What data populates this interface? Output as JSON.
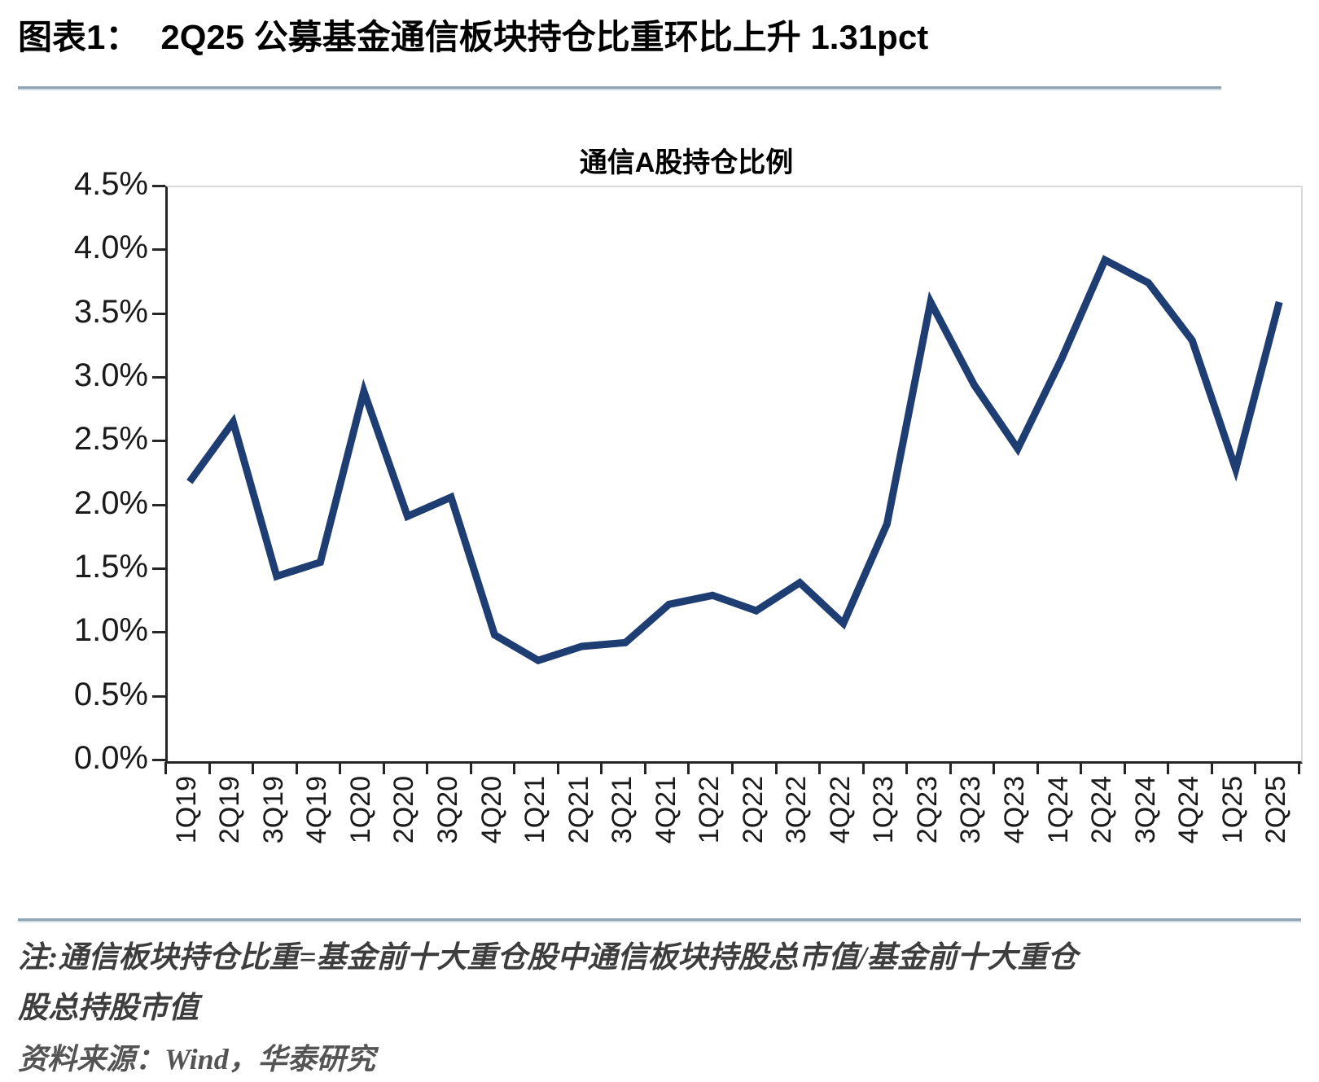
{
  "figure": {
    "label": "图表1：",
    "title": "2Q25 公募基金通信板块持仓比重环比上升 1.31pct"
  },
  "chart_data": {
    "type": "line",
    "title": "通信A股持仓比例",
    "categories": [
      "1Q19",
      "2Q19",
      "3Q19",
      "4Q19",
      "1Q20",
      "2Q20",
      "3Q20",
      "4Q20",
      "1Q21",
      "2Q21",
      "3Q21",
      "4Q21",
      "1Q22",
      "2Q22",
      "3Q22",
      "4Q22",
      "1Q23",
      "2Q23",
      "3Q23",
      "4Q23",
      "1Q24",
      "2Q24",
      "3Q24",
      "4Q24",
      "1Q25",
      "2Q25"
    ],
    "series": [
      {
        "name": "通信A股持仓比例",
        "values": [
          2.19,
          2.66,
          1.45,
          1.56,
          2.9,
          1.92,
          2.07,
          0.99,
          0.79,
          0.9,
          0.93,
          1.23,
          1.3,
          1.18,
          1.4,
          1.08,
          1.86,
          3.6,
          2.95,
          2.45,
          3.15,
          3.93,
          3.75,
          3.3,
          2.29,
          3.6
        ]
      }
    ],
    "xlabel": "",
    "ylabel": "",
    "ylim": [
      0,
      4.5
    ],
    "ytick_step": 0.5,
    "ytick_labels": [
      "4.5%",
      "4.0%",
      "3.5%",
      "3.0%",
      "2.5%",
      "2.0%",
      "1.5%",
      "1.0%",
      "0.5%",
      "0.0%"
    ],
    "grid": false,
    "legend_position": "none",
    "line_color": "#1e3d73"
  },
  "footer": {
    "note_lines": [
      "注:通信板块持仓比重=基金前十大重仓股中通信板块持股总市值/基金前十大重仓",
      "股总持股市值"
    ],
    "source": "资料来源：Wind，华泰研究"
  }
}
